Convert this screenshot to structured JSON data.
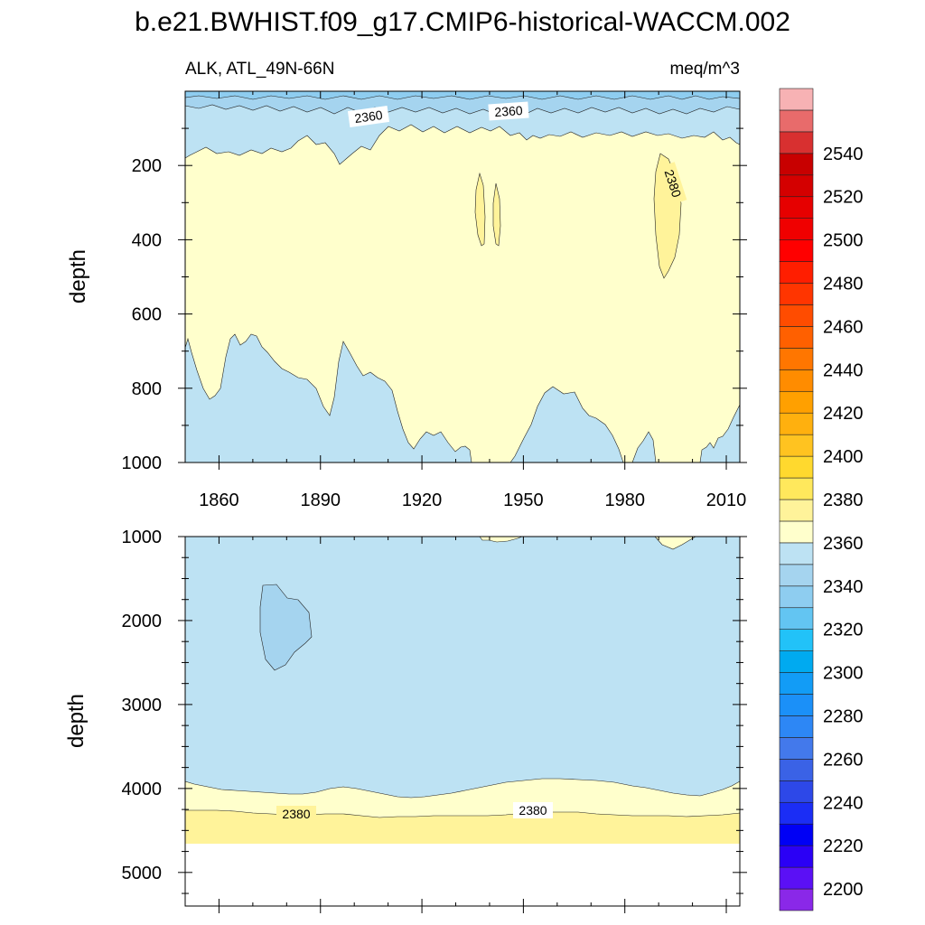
{
  "figure_title": "b.e21.BWHIST.f09_g17.CMIP6-historical-WACCM.002",
  "chart_data": [
    {
      "type": "heatmap",
      "subtype": "filled-contour",
      "panel": "upper",
      "left_label": "ALK, ATL_49N-66N",
      "right_label": "meq/m^3",
      "ylabel": "depth",
      "x_ticks": [
        "1860",
        "1890",
        "1920",
        "1950",
        "1980",
        "2010"
      ],
      "x_tick_values": [
        1860,
        1890,
        1920,
        1950,
        1980,
        2010
      ],
      "xlim": [
        1850,
        2014
      ],
      "y_ticks": [
        "200",
        "400",
        "600",
        "800",
        "1000"
      ],
      "y_tick_values": [
        200,
        400,
        600,
        800,
        1000
      ],
      "ylim": [
        0,
        1000
      ],
      "y_inverted": true,
      "contour_labels": [
        "2360",
        "2360",
        "2380"
      ],
      "regions": [
        {
          "level": "2340-2350",
          "color": "#8ecdf0",
          "description": "thin surface layer"
        },
        {
          "level": "2350-2360",
          "color": "#a5d4ef",
          "description": "near-surface layer"
        },
        {
          "level": "2360-2370",
          "color": "#bde2f3",
          "description": "upper layer and deep bottom lobes"
        },
        {
          "level": "2370-2380",
          "color": "#ffffcc",
          "description": "intermediate water"
        },
        {
          "level": "2380-2390",
          "color": "#fff39a",
          "description": "isolated patches ~1938-1943 and ~1990-1995"
        }
      ]
    },
    {
      "type": "heatmap",
      "subtype": "filled-contour",
      "panel": "lower",
      "ylabel": "depth",
      "x_tick_values": [
        1860,
        1890,
        1920,
        1950,
        1980,
        2010
      ],
      "xlim": [
        1850,
        2014
      ],
      "y_ticks": [
        "1000",
        "2000",
        "3000",
        "4000",
        "5000"
      ],
      "y_tick_values": [
        1000,
        2000,
        3000,
        4000,
        5000
      ],
      "ylim": [
        1000,
        5400
      ],
      "y_inverted": true,
      "contour_labels": [
        "2380",
        "2380"
      ],
      "regions": [
        {
          "level": "2360-2370",
          "color": "#bde2f3",
          "description": "bulk of deep water"
        },
        {
          "level": "2350-2360",
          "color": "#a5d4ef",
          "description": "patch ~1875-1890 at 1600-2600 m"
        },
        {
          "level": "2370-2380",
          "color": "#ffffcc",
          "description": "near-bottom band"
        },
        {
          "level": "2380-2390",
          "color": "#fff39a",
          "description": "bottom layer down to ~4620 m"
        }
      ]
    }
  ],
  "colorbar": {
    "labels": [
      "2200",
      "2220",
      "2240",
      "2260",
      "2280",
      "2300",
      "2320",
      "2340",
      "2360",
      "2380",
      "2400",
      "2420",
      "2440",
      "2460",
      "2480",
      "2500",
      "2520",
      "2540"
    ],
    "colors": [
      "#8a28e8",
      "#5b10f5",
      "#2b00f5",
      "#0000f5",
      "#1b2df5",
      "#2d48e8",
      "#3a62e6",
      "#4379eb",
      "#2d87f5",
      "#1b90f8",
      "#129cf6",
      "#00aaf0",
      "#22c2f8",
      "#63c5f2",
      "#8ecdf0",
      "#a5d4ef",
      "#bde2f3",
      "#ffffcc",
      "#fff39a",
      "#ffe85c",
      "#ffd92e",
      "#ffc320",
      "#ffb00e",
      "#ffa000",
      "#ff8c00",
      "#ff7600",
      "#ff6000",
      "#ff4c00",
      "#ff3500",
      "#ff1e00",
      "#ff0000",
      "#f00000",
      "#e60000",
      "#d40000",
      "#c80000",
      "#d83030",
      "#e86b6b",
      "#f7b2b4"
    ]
  }
}
